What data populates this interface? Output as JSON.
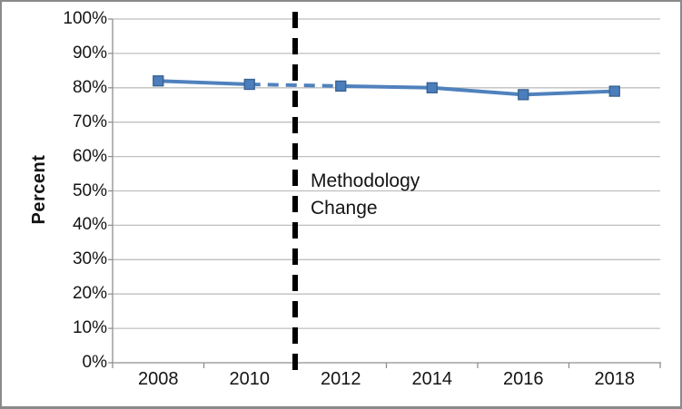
{
  "chart_data": {
    "type": "line",
    "ylabel": "Percent",
    "categories": [
      "2008",
      "2010",
      "2012",
      "2014",
      "2016",
      "2018"
    ],
    "series": [
      {
        "name": "Percent",
        "values": [
          82,
          81,
          80.5,
          80,
          78,
          79
        ]
      }
    ],
    "ylim": [
      0,
      100
    ],
    "ytick_step": 10,
    "ytick_labels": [
      "0%",
      "10%",
      "20%",
      "30%",
      "40%",
      "50%",
      "60%",
      "70%",
      "80%",
      "90%",
      "100%"
    ],
    "grid": "horizontal",
    "legend_position": "none",
    "line_color": "#4f81bd",
    "marker": "square",
    "marker_fill": "#4a7ebc",
    "marker_border": "#38608f",
    "dashed_segment": {
      "from": "2010",
      "to": "2012"
    },
    "annotation": {
      "line1": "Methodology",
      "line2": "Change",
      "x_year": "2011",
      "line_style": "dashed",
      "line_color": "#000000"
    },
    "axis_color": "#8f8f8f",
    "gridline_color": "#bfbfbf"
  }
}
